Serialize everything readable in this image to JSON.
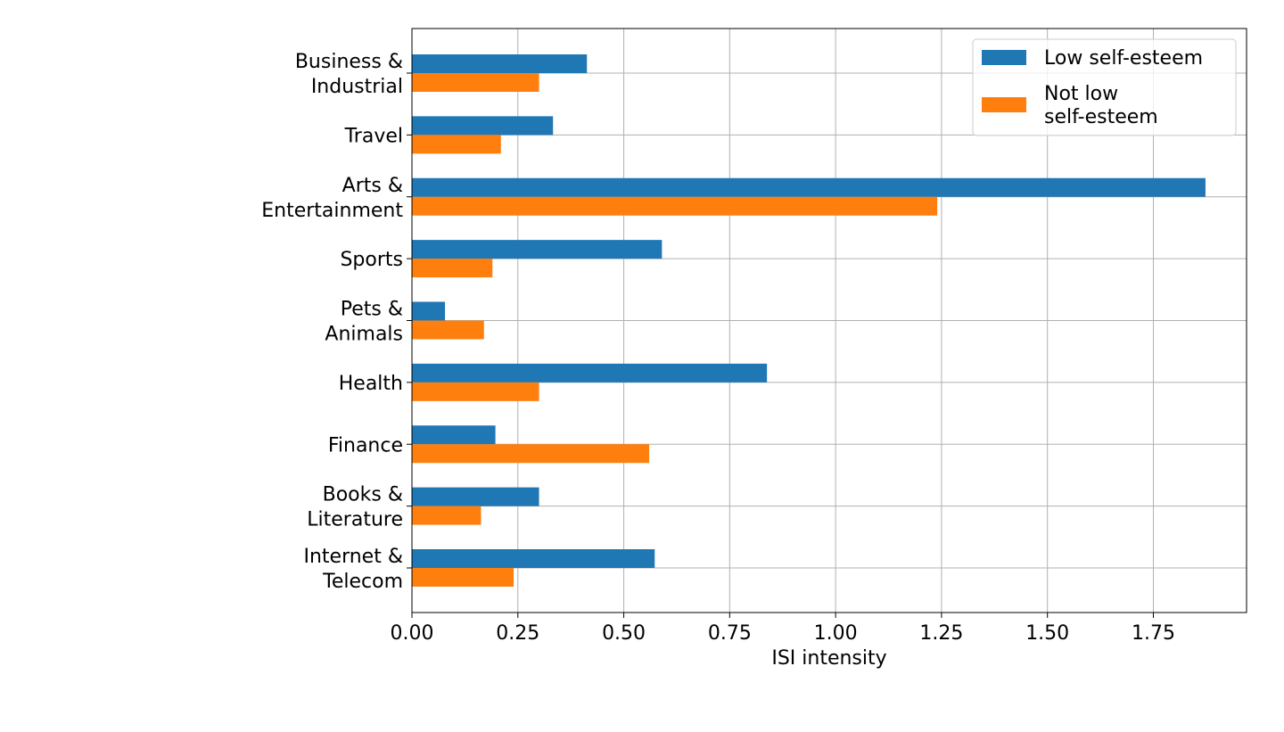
{
  "chart_data": {
    "type": "bar",
    "orientation": "horizontal",
    "categories": [
      "Business &\nIndustrial",
      "Travel",
      "Arts &\nEntertainment",
      "Sports",
      "Pets &\nAnimals",
      "Health",
      "Finance",
      "Books &\nLiterature",
      "Internet &\nTelecom"
    ],
    "series": [
      {
        "name": "Low self-esteem",
        "color": "#1f77b4",
        "values": [
          0.413,
          0.333,
          1.873,
          0.59,
          0.078,
          0.838,
          0.197,
          0.3,
          0.573
        ]
      },
      {
        "name": "Not low\nself-esteem",
        "color": "#ff7f0e",
        "values": [
          0.3,
          0.21,
          1.24,
          0.19,
          0.17,
          0.3,
          0.56,
          0.163,
          0.24
        ]
      }
    ],
    "title": "",
    "xlabel": "ISI intensity",
    "ylabel": "",
    "xlim": [
      0,
      1.97
    ],
    "xticks": [
      "0.00",
      "0.25",
      "0.50",
      "0.75",
      "1.00",
      "1.25",
      "1.50",
      "1.75"
    ],
    "grid": true,
    "legend_position": "top-right"
  }
}
